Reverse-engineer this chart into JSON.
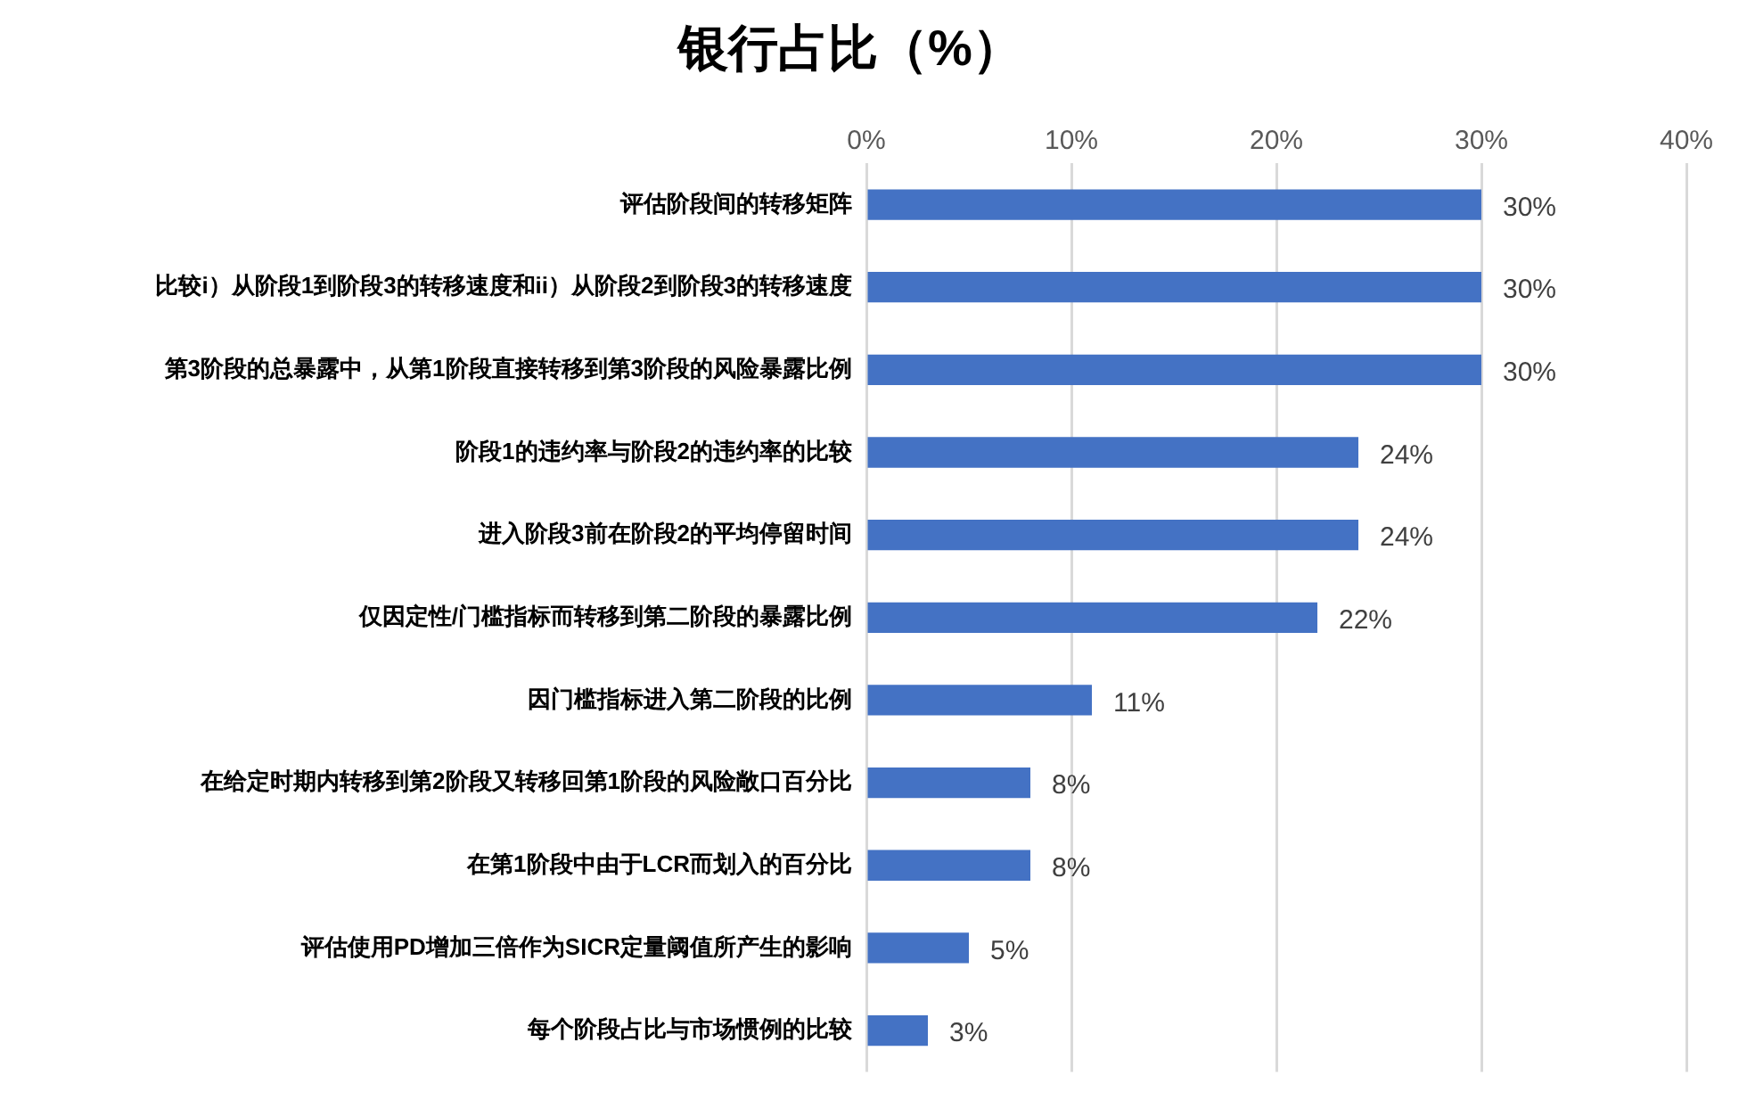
{
  "chart_data": {
    "type": "bar",
    "orientation": "horizontal",
    "title": "银行占比（%）",
    "categories": [
      "评估阶段间的转移矩阵",
      "比较i）从阶段1到阶段3的转移速度和ii）从阶段2到阶段3的转移速度",
      "第3阶段的总暴露中，从第1阶段直接转移到第3阶段的风险暴露比例",
      "阶段1的违约率与阶段2的违约率的比较",
      "进入阶段3前在阶段2的平均停留时间",
      "仅因定性/门槛指标而转移到第二阶段的暴露比例",
      "因门槛指标进入第二阶段的比例",
      "在给定时期内转移到第2阶段又转移回第1阶段的风险敞口百分比",
      "在第1阶段中由于LCR而划入的百分比",
      "评估使用PD增加三倍作为SICR定量阈值所产生的影响",
      "每个阶段占比与市场惯例的比较"
    ],
    "values": [
      30,
      30,
      30,
      24,
      24,
      22,
      11,
      8,
      8,
      5,
      3
    ],
    "value_labels": [
      "30%",
      "30%",
      "30%",
      "24%",
      "24%",
      "22%",
      "11%",
      "8%",
      "8%",
      "5%",
      "3%"
    ],
    "color": "#4472c4",
    "xlim": [
      0,
      40
    ],
    "xticks": [
      {
        "value": 0,
        "label": "0%"
      },
      {
        "value": 10,
        "label": "10%"
      },
      {
        "value": 20,
        "label": "20%"
      },
      {
        "value": 30,
        "label": "30%"
      },
      {
        "value": 40,
        "label": "40%"
      }
    ],
    "grid": "x",
    "legend": false
  }
}
